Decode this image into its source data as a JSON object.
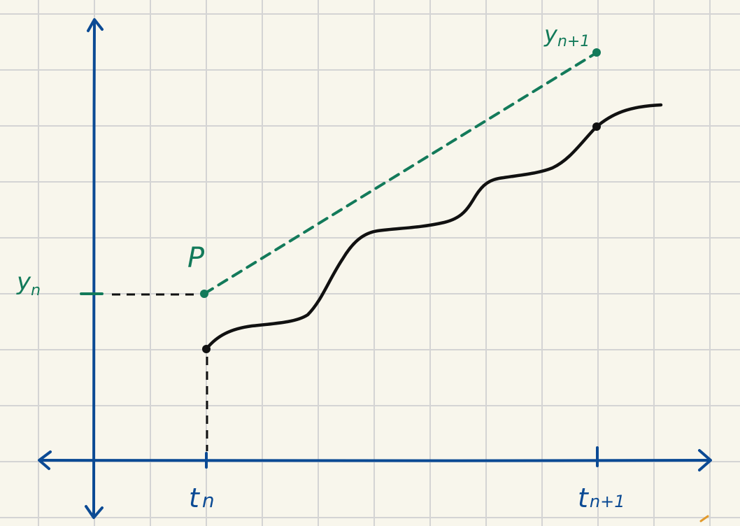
{
  "colors": {
    "paper": "#f8f6ec",
    "grid": "#d4d4d4",
    "axis": "#0b4a94",
    "curve": "#111111",
    "tangent": "#137a5a",
    "accent": "#e29a2c"
  },
  "labels": {
    "y_n": "y",
    "y_n_sub": "n",
    "y_n1": "y",
    "y_n1_sub": "n+1",
    "point_p": "P",
    "t_n": "t",
    "t_n_sub": "n",
    "t_n1": "t",
    "t_n1_sub": "n+1"
  }
}
